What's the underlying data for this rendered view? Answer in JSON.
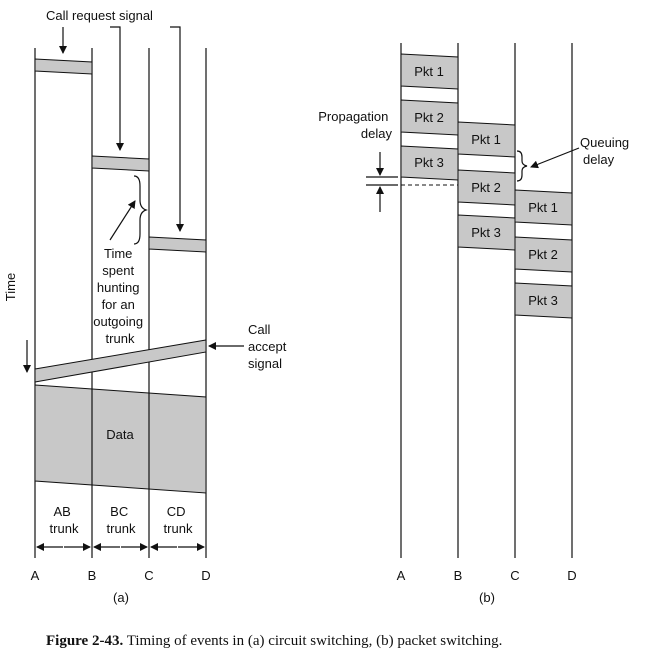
{
  "a": {
    "call_request": "Call request signal",
    "time": "Time",
    "hunting": [
      "Time",
      "spent",
      "hunting",
      "for an",
      "outgoing",
      "trunk"
    ],
    "call_accept": [
      "Call",
      "accept",
      "signal"
    ],
    "data": "Data",
    "trunks": [
      [
        "AB",
        "trunk"
      ],
      [
        "BC",
        "trunk"
      ],
      [
        "CD",
        "trunk"
      ]
    ],
    "nodes": [
      "A",
      "B",
      "C",
      "D"
    ],
    "sub": "(a)"
  },
  "b": {
    "propagation": [
      "Propagation",
      "delay"
    ],
    "queuing": [
      "Queuing",
      "delay"
    ],
    "pkts": [
      "Pkt 1",
      "Pkt 2",
      "Pkt 3"
    ],
    "nodes": [
      "A",
      "B",
      "C",
      "D"
    ],
    "sub": "(b)"
  },
  "caption": {
    "label": "Figure 2-43.",
    "text": "Timing of events in (a) circuit switching, (b) packet switching."
  }
}
